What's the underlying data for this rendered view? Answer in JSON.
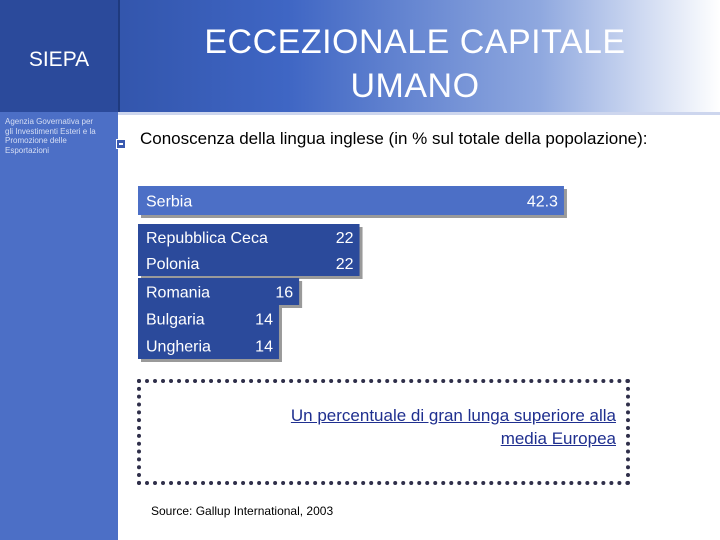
{
  "logo": "SIEPA",
  "agency": "Agenzia Governativa per gli Investimenti Esteri e la Promozione delle Esportazioni",
  "title": "ECCEZIONALE CAPITALE UMANO",
  "subtitle": "Conoscenza della lingua inglese (in % sul totale della popolazione):",
  "callout": "Un percentuale di gran lunga superiore alla media Europea",
  "source": "Source: Gallup International, 2003",
  "colors": {
    "bar_fill": "#2b4a9b",
    "highlight_fill": "#4c6fc6",
    "label_text": "#ffffff"
  },
  "chart_data": {
    "type": "bar",
    "orientation": "horizontal",
    "categories": [
      "Serbia",
      "Repubblica Ceca",
      "Polonia",
      "Romania",
      "Bulgaria",
      "Ungheria"
    ],
    "values": [
      42.3,
      22,
      22,
      16,
      14,
      14
    ],
    "value_labels": [
      "42.3",
      "22",
      "22",
      "16",
      "14",
      "14"
    ],
    "highlight": "Serbia",
    "title": "",
    "xlabel": "",
    "ylabel": ""
  }
}
